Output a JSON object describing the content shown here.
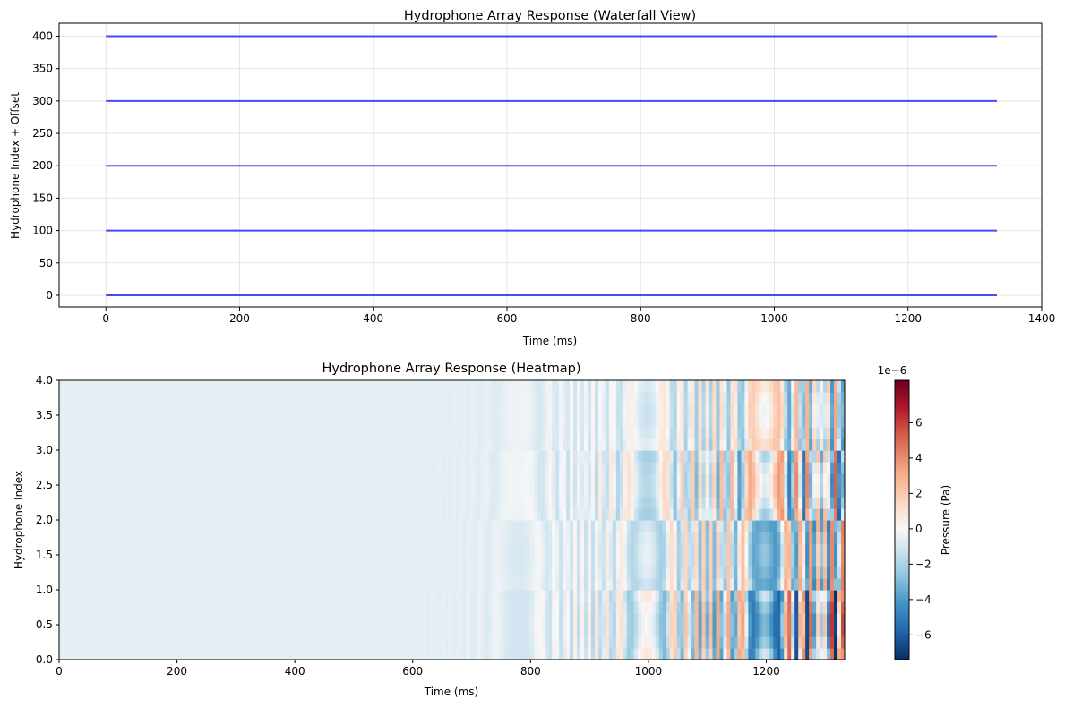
{
  "chart_data": [
    {
      "type": "line",
      "title": "Hydrophone Array Response (Waterfall View)",
      "xlabel": "Time (ms)",
      "ylabel": "Hydrophone Index + Offset",
      "xlim": [
        -70,
        1400
      ],
      "ylim": [
        -18,
        420
      ],
      "xticks": [
        0,
        200,
        400,
        600,
        800,
        1000,
        1200,
        1400
      ],
      "yticks": [
        0,
        50,
        100,
        150,
        200,
        250,
        300,
        350,
        400
      ],
      "grid": true,
      "line_color": "#0000ff",
      "series": [
        {
          "x": [
            0,
            1333
          ],
          "y": [
            0,
            0
          ]
        },
        {
          "x": [
            0,
            1333
          ],
          "y": [
            100,
            100
          ]
        },
        {
          "x": [
            0,
            1333
          ],
          "y": [
            200,
            200
          ]
        },
        {
          "x": [
            0,
            1333
          ],
          "y": [
            300,
            300
          ]
        },
        {
          "x": [
            0,
            1333
          ],
          "y": [
            400,
            400
          ]
        }
      ]
    },
    {
      "type": "heatmap",
      "title": "Hydrophone Array Response (Heatmap)",
      "xlabel": "Time (ms)",
      "ylabel": "Hydrophone Index",
      "xlim": [
        0,
        1333
      ],
      "ylim": [
        0,
        4
      ],
      "xticks": [
        0,
        200,
        400,
        600,
        800,
        1000,
        1200
      ],
      "yticks": [
        "0.0",
        "0.5",
        "1.0",
        "1.5",
        "2.0",
        "2.5",
        "3.0",
        "3.5",
        "4.0"
      ],
      "colormap": "RdBu_r",
      "colorbar": {
        "label": "Pressure (Pa)",
        "scale_label": "1e−6",
        "range": [
          -7.4,
          8.4
        ],
        "ticks": [
          "−6",
          "−4",
          "−2",
          "0",
          "2",
          "4",
          "6"
        ],
        "tick_values": [
          -6,
          -4,
          -2,
          0,
          2,
          4,
          6
        ]
      },
      "rows": [
        {
          "y_range": [
            0,
            1
          ],
          "peak_amplitude": -7.4
        },
        {
          "y_range": [
            1,
            2
          ],
          "peak_amplitude": -5.0
        },
        {
          "y_range": [
            2,
            3
          ],
          "peak_amplitude": 6.0
        },
        {
          "y_range": [
            3,
            4
          ],
          "peak_amplitude": 4.0
        }
      ],
      "signal_onset_ms": 550
    }
  ]
}
